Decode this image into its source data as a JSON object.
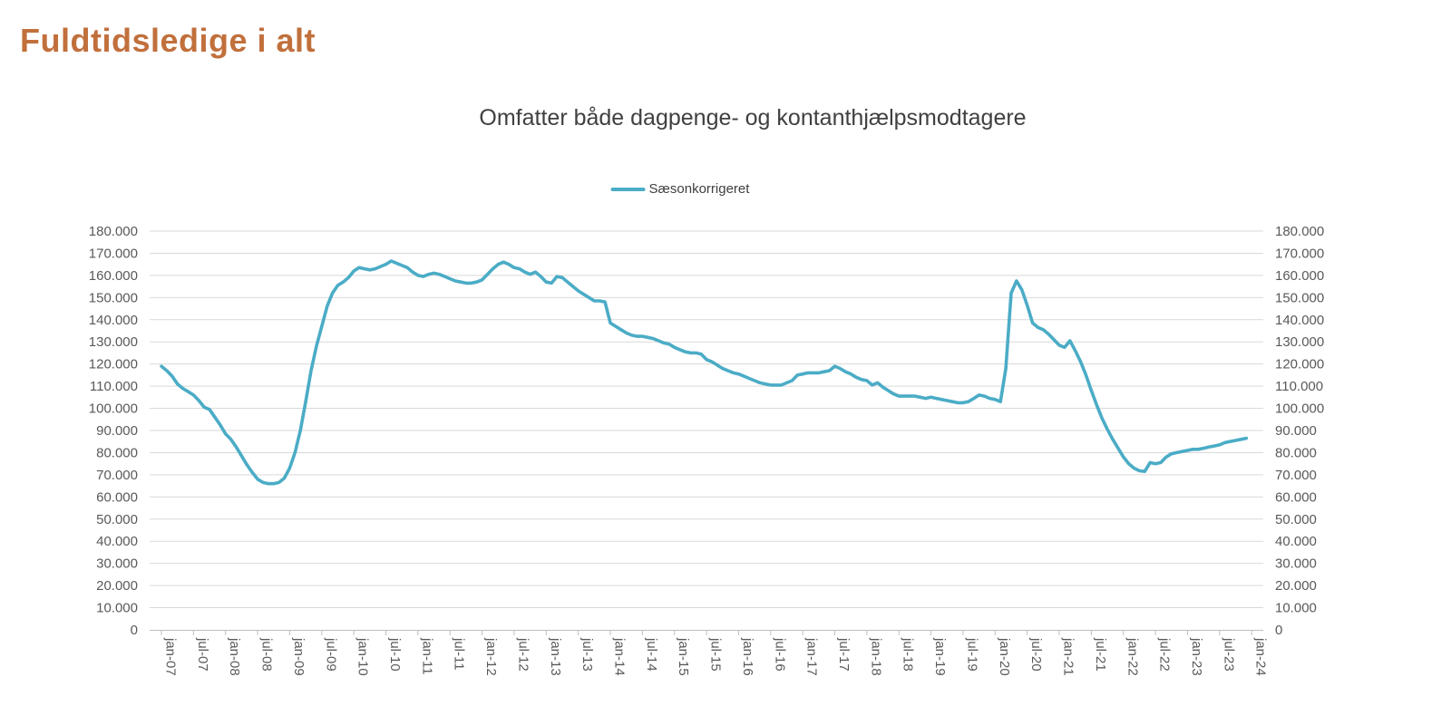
{
  "page": {
    "title": "Fuldtidsledige i alt",
    "title_color": "#C1703C"
  },
  "chart": {
    "subtitle": "Omfatter både dagpenge- og kontanthjælpsmodtagere",
    "legend": {
      "label": "Sæsonkorrigeret",
      "color": "#4BACC6"
    }
  },
  "chart_data": {
    "type": "line",
    "title": "Omfatter både dagpenge- og kontanthjælpsmodtagere",
    "grid": "horizontal",
    "legend_position": "top-center",
    "axes": {
      "y_left": true,
      "y_right": true,
      "x_label_rotation_deg": 90
    },
    "y_ticks": {
      "min": 0,
      "max": 180000,
      "step": 10000,
      "labels": [
        "0",
        "10.000",
        "20.000",
        "30.000",
        "40.000",
        "50.000",
        "60.000",
        "70.000",
        "80.000",
        "90.000",
        "100.000",
        "110.000",
        "120.000",
        "130.000",
        "140.000",
        "150.000",
        "160.000",
        "170.000",
        "180.000"
      ]
    },
    "x_tick_labels": [
      "jan-07",
      "jul-07",
      "jan-08",
      "jul-08",
      "jan-09",
      "jul-09",
      "jan-10",
      "jul-10",
      "jan-11",
      "jul-11",
      "jan-12",
      "jul-12",
      "jan-13",
      "jul-13",
      "jan-14",
      "jul-14",
      "jan-15",
      "jul-15",
      "jan-16",
      "jul-16",
      "jan-17",
      "jul-17",
      "jan-18",
      "jul-18",
      "jan-19",
      "jul-19",
      "jan-20",
      "jul-20",
      "jan-21",
      "jul-21",
      "jan-22",
      "jul-22",
      "jan-23",
      "jul-23",
      "jan-24"
    ],
    "x_tick_month_interval": 6,
    "series": [
      {
        "name": "Sæsonkorrigeret",
        "color": "#4BACC6",
        "start": "jan-07",
        "frequency": "monthly",
        "values": [
          119000,
          117000,
          114500,
          111000,
          109000,
          107500,
          106000,
          103500,
          100500,
          99500,
          96000,
          92500,
          88500,
          86000,
          82500,
          78500,
          74500,
          71000,
          68000,
          66500,
          66000,
          66000,
          66500,
          68500,
          73000,
          80000,
          90000,
          103000,
          117000,
          128000,
          137000,
          146000,
          152000,
          155500,
          157000,
          159000,
          162000,
          163500,
          163000,
          162500,
          163000,
          164000,
          165000,
          166500,
          165500,
          164500,
          163500,
          161500,
          160000,
          159500,
          160500,
          161000,
          160500,
          159500,
          158500,
          157500,
          157000,
          156500,
          156500,
          157000,
          158000,
          160500,
          163000,
          165000,
          166000,
          165000,
          163500,
          163000,
          161500,
          160500,
          161500,
          159500,
          157000,
          156500,
          159500,
          159000,
          157000,
          155000,
          153000,
          151500,
          150000,
          148500,
          148500,
          148000,
          138500,
          137000,
          135500,
          134000,
          133000,
          132500,
          132500,
          132000,
          131500,
          130500,
          129500,
          129000,
          127500,
          126500,
          125500,
          125000,
          125000,
          124500,
          122000,
          121000,
          119500,
          118000,
          117000,
          116000,
          115500,
          114500,
          113500,
          112500,
          111500,
          111000,
          110500,
          110500,
          110500,
          111500,
          112500,
          115000,
          115500,
          116000,
          116000,
          116000,
          116500,
          117000,
          119000,
          118000,
          116500,
          115500,
          114000,
          113000,
          112500,
          110500,
          111500,
          109500,
          108000,
          106500,
          105500,
          105500,
          105500,
          105500,
          105000,
          104500,
          105000,
          104500,
          104000,
          103500,
          103000,
          102500,
          102500,
          103000,
          104500,
          106000,
          105500,
          104500,
          104000,
          103000,
          118000,
          152000,
          157500,
          153500,
          146500,
          138500,
          136500,
          135500,
          133500,
          131000,
          128500,
          127500,
          130500,
          126000,
          121000,
          115000,
          108000,
          101500,
          95500,
          90500,
          86000,
          82000,
          78000,
          75000,
          73000,
          71800,
          71500,
          75500,
          75000,
          75500,
          78000,
          79500,
          80000,
          80500,
          81000,
          81500,
          81500,
          82000,
          82500,
          83000,
          83500,
          84500,
          85000,
          85500,
          86000,
          86500
        ]
      }
    ]
  }
}
